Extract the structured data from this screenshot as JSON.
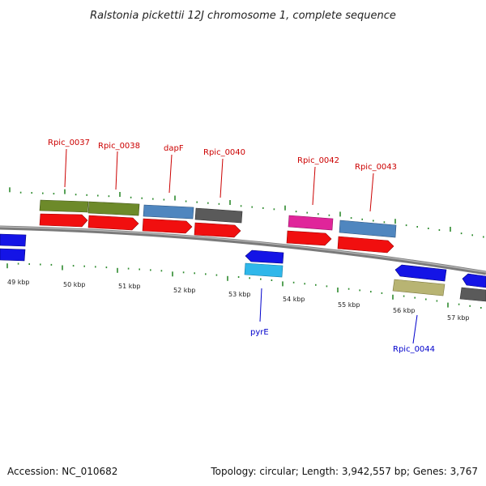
{
  "title": "Ralstonia pickettii 12J chromosome 1, complete sequence",
  "footer": {
    "accession": "Accession: NC_010682",
    "topology": "Topology: circular; Length: 3,942,557 bp; Genes: 3,767"
  },
  "colors": {
    "backbone": "#7f7f7f",
    "tick": "#2e8b2e",
    "label_top": "#cc0000",
    "label_bottom": "#0000cc",
    "red": "#f10f0f",
    "olive": "#6d8a2a",
    "steel": "#4f86bf",
    "gray": "#555555",
    "magenta": "#e0259a",
    "blue": "#1414e6",
    "cyan": "#2fb7ea",
    "khaki": "#b8b473"
  },
  "kbp_labels": [
    "49 kbp",
    "50 kbp",
    "51 kbp",
    "52 kbp",
    "53 kbp",
    "54 kbp",
    "55 kbp",
    "56 kbp",
    "57 kbp"
  ],
  "gene_labels_top": [
    "Rpic_0037",
    "Rpic_0038",
    "dapF",
    "Rpic_0040",
    "Rpic_0042",
    "Rpic_0043"
  ],
  "gene_labels_bottom": [
    "pyrE",
    "Rpic_0044"
  ]
}
